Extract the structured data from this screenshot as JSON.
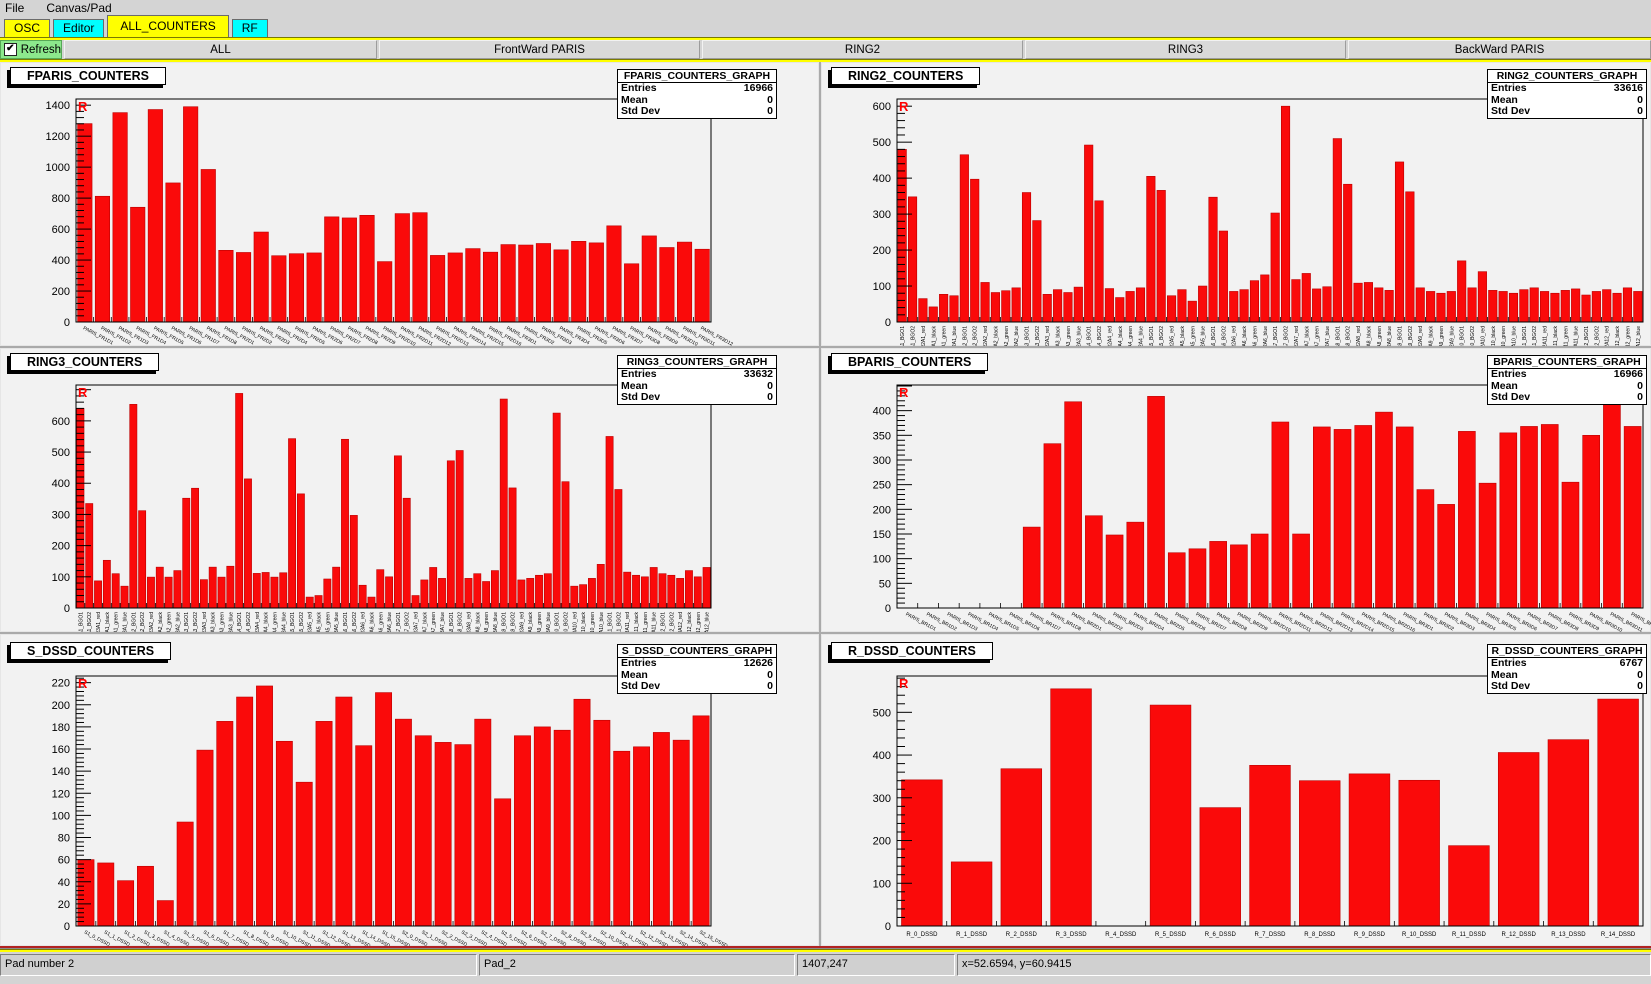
{
  "menu": {
    "items": [
      "File",
      "Canvas/Pad"
    ]
  },
  "tabs": [
    {
      "label": "OSC",
      "color": "#ffff00",
      "active": false
    },
    {
      "label": "Editor",
      "color": "#00ffff",
      "active": false
    },
    {
      "label": "ALL_COUNTERS",
      "color": "#ffff00",
      "active": true
    },
    {
      "label": "RF",
      "color": "#00ffff",
      "active": false
    }
  ],
  "toolbar": {
    "refresh_label": "Refresh",
    "refresh_checked": true,
    "check_glyph": "✔",
    "buttons": [
      "ALL",
      "FrontWard PARIS",
      "RING2",
      "RING3",
      "BackWard PARIS"
    ]
  },
  "status_bar": {
    "cells": [
      "Pad number 2",
      "Pad_2",
      "1407,247",
      "x=52.6594, y=60.9415"
    ]
  },
  "colors": {
    "bar": "#fa0a0a",
    "bar_edge": "#bb0000",
    "tab_yellow": "#ffff00",
    "tab_cyan": "#00ffff",
    "refresh_green": "#8ce88c",
    "separator_yellow": "#ffff00",
    "separator_red": "#b22222",
    "corner_marker": "#ff0000"
  },
  "chart_data": [
    {
      "id": "FPARIS",
      "type": "bar",
      "title": "FPARIS_COUNTERS",
      "corner_label": "R",
      "stats": {
        "title": "FPARIS_COUNTERS_GRAPH",
        "entries": "16966",
        "mean": "0",
        "std_dev": "0"
      },
      "ylim": [
        0,
        1440
      ],
      "ytick_step": 200,
      "label_style": "slant",
      "categories": [
        "PARIS_FR1D1",
        "PARIS_FR1D2",
        "PARIS_FR1D3",
        "PARIS_FR1D4",
        "PARIS_FR1D5",
        "PARIS_FR1D6",
        "PARIS_FR1D7",
        "PARIS_FR1D8",
        "PARIS_FR2D1",
        "PARIS_FR2D2",
        "PARIS_FR2D3",
        "PARIS_FR2D4",
        "PARIS_FR2D5",
        "PARIS_FR2D6",
        "PARIS_FR2D7",
        "PARIS_FR2D8",
        "PARIS_FR2D9",
        "PARIS_FR2D10",
        "PARIS_FR2D11",
        "PARIS_FR2D12",
        "PARIS_FR2D13",
        "PARIS_FR2D14",
        "PARIS_FR2D15",
        "PARIS_FR2D16",
        "PARIS_FR3D1",
        "PARIS_FR3D2",
        "PARIS_FR3D3",
        "PARIS_FR3D4",
        "PARIS_FR3D5",
        "PARIS_FR3D6",
        "PARIS_FR3D7",
        "PARIS_FR3D8",
        "PARIS_FR3D9",
        "PARIS_FR3D10",
        "PARIS_FR3D11",
        "PARIS_FR3D12"
      ],
      "values": [
        1281,
        812,
        1352,
        741,
        1372,
        898,
        1390,
        985,
        463,
        449,
        581,
        428,
        441,
        446,
        679,
        672,
        689,
        390,
        700,
        706,
        430,
        446,
        474,
        451,
        500,
        497,
        507,
        466,
        521,
        511,
        621,
        376,
        556,
        481,
        516,
        470
      ]
    },
    {
      "id": "RING2",
      "type": "bar",
      "title": "RING2_COUNTERS",
      "corner_label": "R",
      "stats": {
        "title": "RING2_COUNTERS_GRAPH",
        "entries": "33616",
        "mean": "0",
        "std_dev": "0"
      },
      "ylim": [
        0,
        620
      ],
      "ytick_step": 100,
      "label_style": "vertical",
      "categories": [
        "R2A1_BGO1",
        "R2A1_BGO2",
        "R2A1_red",
        "R2A1_black",
        "R2A1_green",
        "R2A1_blue",
        "R2A2_BGO1",
        "R2A2_BGO2",
        "R2A2_red",
        "R2A2_black",
        "R2A2_green",
        "R2A2_blue",
        "R2A3_BGO1",
        "R2A3_BGO2",
        "R2A3_red",
        "R2A3_black",
        "R2A3_green",
        "R2A3_blue",
        "R2A4_BGO1",
        "R2A4_BGO2",
        "R2A4_red",
        "R2A4_black",
        "R2A4_green",
        "R2A4_blue",
        "R2A5_BGO1",
        "R2A5_BGO2",
        "R2A5_red",
        "R2A5_black",
        "R2A5_green",
        "R2A5_blue",
        "R2A6_BGO1",
        "R2A6_BGO2",
        "R2A6_red",
        "R2A6_black",
        "R2A6_green",
        "R2A6_blue",
        "R2A7_BGO1",
        "R2A7_BGO2",
        "R2A7_red",
        "R2A7_black",
        "R2A7_green",
        "R2A7_blue",
        "R2A8_BGO1",
        "R2A8_BGO2",
        "R2A8_red",
        "R2A8_black",
        "R2A8_green",
        "R2A8_blue",
        "R2A9_BGO1",
        "R2A9_BGO2",
        "R2A9_red",
        "R2A9_black",
        "R2A9_green",
        "R2A9_blue",
        "R2A10_BGO1",
        "R2A10_BGO2",
        "R2A10_red",
        "R2A10_black",
        "R2A10_green",
        "R2A10_blue",
        "R2A11_BGO1",
        "R2A11_BGO2",
        "R2A11_red",
        "R2A11_black",
        "R2A11_green",
        "R2A11_blue",
        "R2A12_BGO1",
        "R2A12_BGO2",
        "R2A12_red",
        "R2A12_black",
        "R2A12_green",
        "R2A12_blue"
      ],
      "values": [
        480,
        348,
        65,
        42,
        77,
        73,
        465,
        397,
        110,
        82,
        87,
        95,
        360,
        282,
        77,
        90,
        82,
        97,
        492,
        337,
        93,
        68,
        85,
        95,
        405,
        366,
        73,
        90,
        58,
        100,
        347,
        253,
        85,
        90,
        115,
        131,
        303,
        600,
        118,
        135,
        92,
        98,
        510,
        383,
        108,
        110,
        95,
        88,
        445,
        362,
        95,
        85,
        80,
        85,
        170,
        95,
        140,
        88,
        85,
        80,
        90,
        95,
        85,
        80,
        88,
        92,
        75,
        85,
        90,
        80,
        95,
        85
      ]
    },
    {
      "id": "RING3",
      "type": "bar",
      "title": "RING3_COUNTERS",
      "corner_label": "R",
      "stats": {
        "title": "RING3_COUNTERS_GRAPH",
        "entries": "33632",
        "mean": "0",
        "std_dev": "0"
      },
      "ylim": [
        0,
        715
      ],
      "ytick_step": 100,
      "label_style": "vertical",
      "categories": [
        "R3A1_BGO1",
        "R3A1_BGO2",
        "R3A1_red",
        "R3A1_black",
        "R3A1_green",
        "R3A1_blue",
        "R3A2_BGO1",
        "R3A2_BGO2",
        "R3A2_red",
        "R3A2_black",
        "R3A2_green",
        "R3A2_blue",
        "R3A3_BGO1",
        "R3A3_BGO2",
        "R3A3_red",
        "R3A3_black",
        "R3A3_green",
        "R3A3_blue",
        "R3A4_BGO1",
        "R3A4_BGO2",
        "R3A4_red",
        "R3A4_black",
        "R3A4_green",
        "R3A4_blue",
        "R3A5_BGO1",
        "R3A5_BGO2",
        "R3A5_red",
        "R3A5_black",
        "R3A5_green",
        "R3A5_blue",
        "R3A6_BGO1",
        "R3A6_BGO2",
        "R3A6_red",
        "R3A6_black",
        "R3A6_green",
        "R3A6_blue",
        "R3A7_BGO1",
        "R3A7_BGO2",
        "R3A7_red",
        "R3A7_black",
        "R3A7_green",
        "R3A7_blue",
        "R3A8_BGO1",
        "R3A8_BGO2",
        "R3A8_red",
        "R3A8_black",
        "R3A8_green",
        "R3A8_blue",
        "R3A9_BGO1",
        "R3A9_BGO2",
        "R3A9_red",
        "R3A9_black",
        "R3A9_green",
        "R3A9_blue",
        "R3A10_BGO1",
        "R3A10_BGO2",
        "R3A10_red",
        "R3A10_black",
        "R3A10_green",
        "R3A10_blue",
        "R3A11_BGO1",
        "R3A11_BGO2",
        "R3A11_red",
        "R3A11_black",
        "R3A11_green",
        "R3A11_blue",
        "R3A12_BGO1",
        "R3A12_BGO2",
        "R3A12_red",
        "R3A12_black",
        "R3A12_green",
        "R3A12_blue"
      ],
      "values": [
        640,
        335,
        87,
        153,
        110,
        70,
        653,
        312,
        99,
        131,
        99,
        120,
        352,
        384,
        91,
        131,
        99,
        134,
        688,
        414,
        111,
        114,
        99,
        113,
        543,
        366,
        35,
        40,
        93,
        131,
        541,
        297,
        73,
        35,
        123,
        100,
        488,
        352,
        40,
        90,
        130,
        95,
        472,
        505,
        95,
        110,
        85,
        120,
        670,
        385,
        90,
        95,
        105,
        110,
        625,
        405,
        70,
        75,
        95,
        140,
        550,
        380,
        115,
        105,
        100,
        130,
        110,
        105,
        95,
        120,
        100,
        130
      ]
    },
    {
      "id": "BPARIS",
      "type": "bar",
      "title": "BPARIS_COUNTERS",
      "corner_label": "R",
      "stats": {
        "title": "BPARIS_COUNTERS_GRAPH",
        "entries": "16966",
        "mean": "0",
        "std_dev": "0"
      },
      "ylim": [
        0,
        452
      ],
      "ytick_step": 50,
      "label_style": "slant",
      "categories": [
        "PARIS_BR1D1",
        "PARIS_BR1D2",
        "PARIS_BR1D3",
        "PARIS_BR1D4",
        "PARIS_BR1D5",
        "PARIS_BR1D6",
        "PARIS_BR1D7",
        "PARIS_BR1D8",
        "PARIS_BR2D1",
        "PARIS_BR2D2",
        "PARIS_BR2D3",
        "PARIS_BR2D4",
        "PARIS_BR2D5",
        "PARIS_BR2D6",
        "PARIS_BR2D7",
        "PARIS_BR2D8",
        "PARIS_BR2D9",
        "PARIS_BR2D10",
        "PARIS_BR2D11",
        "PARIS_BR2D12",
        "PARIS_BR2D13",
        "PARIS_BR2D14",
        "PARIS_BR2D15",
        "PARIS_BR2D16",
        "PARIS_BR3D1",
        "PARIS_BR3D2",
        "PARIS_BR3D3",
        "PARIS_BR3D4",
        "PARIS_BR3D5",
        "PARIS_BR3D6",
        "PARIS_BR3D7",
        "PARIS_BR3D8",
        "PARIS_BR3D9",
        "PARIS_BR3D10",
        "PARIS_BR3D11",
        "PARIS_BR3D12"
      ],
      "values": [
        0,
        0,
        0,
        0,
        0,
        0,
        164,
        333,
        418,
        187,
        148,
        174,
        429,
        112,
        120,
        135,
        128,
        150,
        377,
        150,
        367,
        362,
        370,
        397,
        367,
        240,
        210,
        358,
        253,
        355,
        368,
        372,
        255,
        350,
        433,
        368
      ]
    },
    {
      "id": "S_DSSD",
      "type": "bar",
      "title": "S_DSSD_COUNTERS",
      "corner_label": "R",
      "stats": {
        "title": "S_DSSD_COUNTERS_GRAPH",
        "entries": "12626",
        "mean": "0",
        "std_dev": "0"
      },
      "ylim": [
        0,
        226
      ],
      "ytick_step": 20,
      "label_style": "slant",
      "categories": [
        "S1_0_DSSD",
        "S1_1_DSSD",
        "S1_2_DSSD",
        "S1_3_DSSD",
        "S1_4_DSSD",
        "S1_5_DSSD",
        "S1_6_DSSD",
        "S1_7_DSSD",
        "S1_8_DSSD",
        "S1_9_DSSD",
        "S1_10_DSSD",
        "S1_11_DSSD",
        "S1_12_DSSD",
        "S1_13_DSSD",
        "S1_14_DSSD",
        "S1_15_DSSD",
        "S2_0_DSSD",
        "S2_1_DSSD",
        "S2_2_DSSD",
        "S2_3_DSSD",
        "S2_4_DSSD",
        "S2_5_DSSD",
        "S2_6_DSSD",
        "S2_7_DSSD",
        "S2_8_DSSD",
        "S2_9_DSSD",
        "S2_10_DSSD",
        "S2_11_DSSD",
        "S2_12_DSSD",
        "S2_13_DSSD",
        "S2_14_DSSD",
        "S2_15_DSSD"
      ],
      "values": [
        60,
        57,
        41,
        54,
        23,
        94,
        159,
        185,
        207,
        217,
        167,
        130,
        185,
        207,
        163,
        211,
        187,
        172,
        166,
        164,
        187,
        115,
        172,
        180,
        177,
        205,
        186,
        158,
        162,
        175,
        168,
        190
      ]
    },
    {
      "id": "R_DSSD",
      "type": "bar",
      "title": "R_DSSD_COUNTERS",
      "corner_label": "R",
      "stats": {
        "title": "R_DSSD_COUNTERS_GRAPH",
        "entries": "6767",
        "mean": "0",
        "std_dev": "0"
      },
      "ylim": [
        0,
        585
      ],
      "ytick_step": 100,
      "label_style": "horizontal",
      "categories": [
        "R_0_DSSD",
        "R_1_DSSD",
        "R_2_DSSD",
        "R_3_DSSD",
        "R_4_DSSD",
        "R_5_DSSD",
        "R_6_DSSD",
        "R_7_DSSD",
        "R_8_DSSD",
        "R_9_DSSD",
        "R_10_DSSD",
        "R_11_DSSD",
        "R_12_DSSD",
        "R_13_DSSD",
        "R_14_DSSD"
      ],
      "values": [
        342,
        150,
        368,
        555,
        0,
        517,
        277,
        376,
        340,
        356,
        341,
        188,
        406,
        436,
        531
      ]
    }
  ]
}
